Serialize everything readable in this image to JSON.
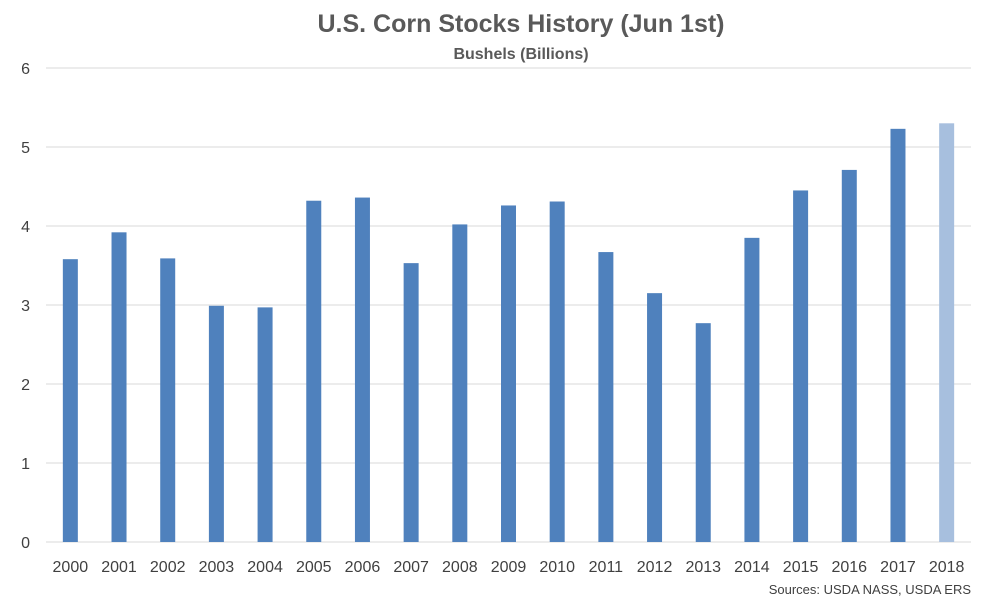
{
  "chart_data": {
    "type": "bar",
    "title": "U.S. Corn Stocks History (Jun 1st)",
    "subtitle": "Bushels (Billions)",
    "categories": [
      "2000",
      "2001",
      "2002",
      "2003",
      "2004",
      "2005",
      "2006",
      "2007",
      "2008",
      "2009",
      "2010",
      "2011",
      "2012",
      "2013",
      "2014",
      "2015",
      "2016",
      "2017",
      "2018"
    ],
    "values": [
      3.58,
      3.92,
      3.59,
      2.99,
      2.97,
      4.32,
      4.36,
      3.53,
      4.02,
      4.26,
      4.31,
      3.67,
      3.15,
      2.77,
      3.85,
      4.45,
      4.71,
      5.23,
      5.3
    ],
    "highlight": [
      false,
      false,
      false,
      false,
      false,
      false,
      false,
      false,
      false,
      false,
      false,
      false,
      false,
      false,
      false,
      false,
      false,
      false,
      true
    ],
    "ylim": [
      0,
      6
    ],
    "yticks": [
      "0",
      "1",
      "2",
      "3",
      "4",
      "5",
      "6"
    ],
    "grid": true,
    "legend": "none",
    "colors": {
      "bar": "#4f81bd",
      "bar_highlight": "#a7bfde"
    },
    "source": "Sources: USDA NASS, USDA ERS"
  }
}
